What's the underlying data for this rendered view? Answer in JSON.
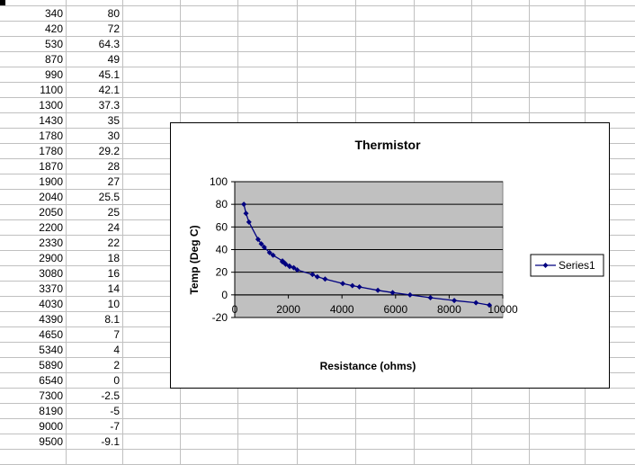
{
  "sheet": {
    "rows": [
      [
        "340",
        "80"
      ],
      [
        "420",
        "72"
      ],
      [
        "530",
        "64.3"
      ],
      [
        "870",
        "49"
      ],
      [
        "990",
        "45.1"
      ],
      [
        "1100",
        "42.1"
      ],
      [
        "1300",
        "37.3"
      ],
      [
        "1430",
        "35"
      ],
      [
        "1780",
        "30"
      ],
      [
        "1780",
        "29.2"
      ],
      [
        "1870",
        "28"
      ],
      [
        "1900",
        "27"
      ],
      [
        "2040",
        "25.5"
      ],
      [
        "2050",
        "25"
      ],
      [
        "2200",
        "24"
      ],
      [
        "2330",
        "22"
      ],
      [
        "2900",
        "18"
      ],
      [
        "3080",
        "16"
      ],
      [
        "3370",
        "14"
      ],
      [
        "4030",
        "10"
      ],
      [
        "4390",
        "8.1"
      ],
      [
        "4650",
        "7"
      ],
      [
        "5340",
        "4"
      ],
      [
        "5890",
        "2"
      ],
      [
        "6540",
        "0"
      ],
      [
        "7300",
        "-2.5"
      ],
      [
        "8190",
        "-5"
      ],
      [
        "9000",
        "-7"
      ],
      [
        "9500",
        "-9.1"
      ]
    ]
  },
  "chart_data": {
    "type": "scatter",
    "title": "Thermistor",
    "xlabel": "Resistance (ohms)",
    "ylabel": "Temp (Deg C)",
    "xlim": [
      0,
      10000
    ],
    "ylim": [
      -20,
      100
    ],
    "x_ticks": [
      "0",
      "2000",
      "4000",
      "6000",
      "8000",
      "10000"
    ],
    "y_ticks": [
      "100",
      "80",
      "60",
      "40",
      "20",
      "0",
      "-20"
    ],
    "grid": "horizontal",
    "plot_background": "#c0c0c0",
    "series_color": "#000080",
    "legend": {
      "position": "right",
      "entries": [
        "Series1"
      ]
    },
    "series": [
      {
        "name": "Series1",
        "x": [
          340,
          420,
          530,
          870,
          990,
          1100,
          1300,
          1430,
          1780,
          1780,
          1870,
          1900,
          2040,
          2050,
          2200,
          2330,
          2900,
          3080,
          3370,
          4030,
          4390,
          4650,
          5340,
          5890,
          6540,
          7300,
          8190,
          9000,
          9500
        ],
        "y": [
          80,
          72,
          64.3,
          49,
          45.1,
          42.1,
          37.3,
          35,
          30,
          29.2,
          28,
          27,
          25.5,
          25,
          24,
          22,
          18,
          16,
          14,
          10,
          8.1,
          7,
          4,
          2,
          0,
          -2.5,
          -5,
          -7,
          -9.1
        ]
      }
    ]
  }
}
